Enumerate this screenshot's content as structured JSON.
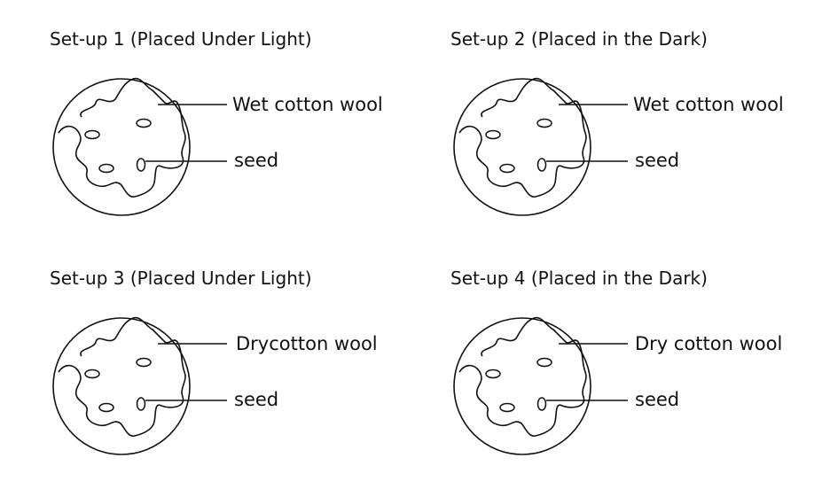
{
  "setups": [
    {
      "title": "Set-up 1 (Placed Under Light)",
      "wool_label": "Wet cotton wool",
      "seed_label": "seed"
    },
    {
      "title": "Set-up 2 (Placed in the Dark)",
      "wool_label": "Wet cotton wool",
      "seed_label": "seed"
    },
    {
      "title": "Set-up 3 (Placed Under Light)",
      "wool_label": "Drycotton wool",
      "seed_label": "seed"
    },
    {
      "title": "Set-up 4 (Placed in the Dark)",
      "wool_label": "Dry cotton wool",
      "seed_label": "seed"
    }
  ],
  "colors": {
    "stroke": "#111111",
    "background": "#ffffff"
  }
}
